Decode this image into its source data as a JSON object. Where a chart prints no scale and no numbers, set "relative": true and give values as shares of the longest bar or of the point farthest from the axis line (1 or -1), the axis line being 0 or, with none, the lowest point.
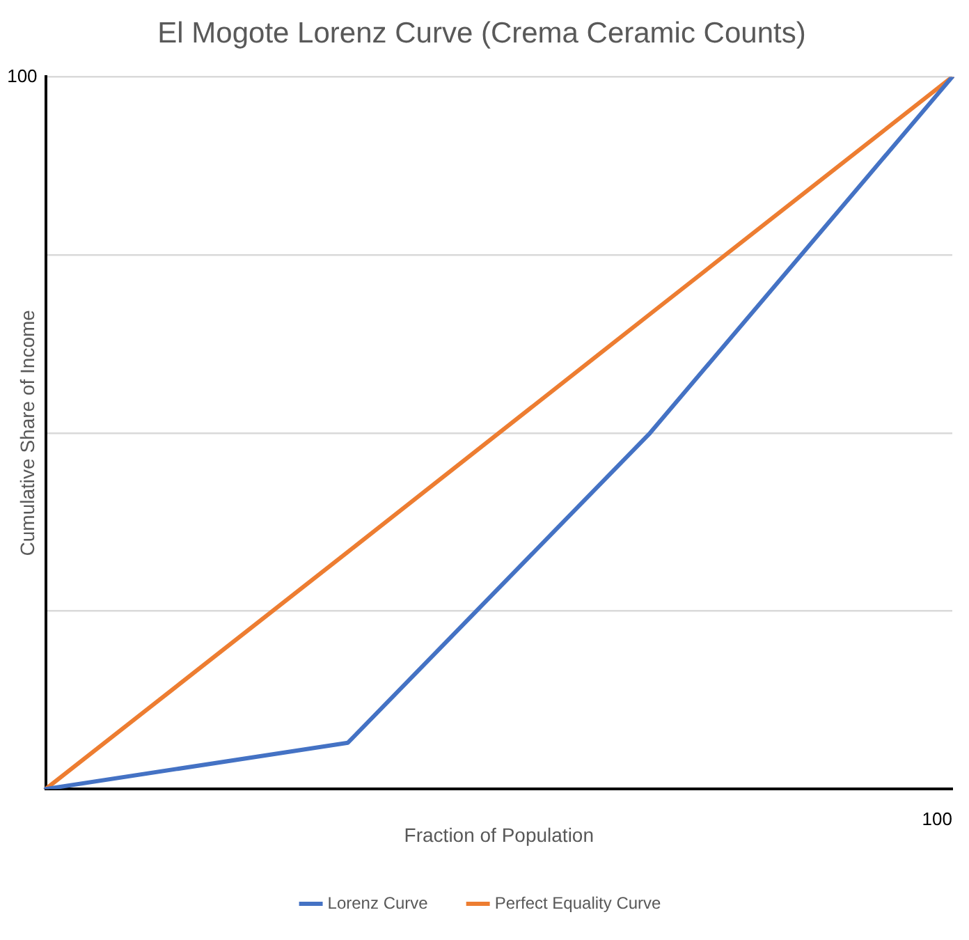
{
  "chart_data": {
    "type": "line",
    "title": "El Mogote Lorenz Curve (Crema Ceramic Counts)",
    "xlabel": "Fraction of Population",
    "ylabel": "Cumulative Share of Income",
    "categories": [
      null,
      null,
      null,
      null
    ],
    "relative": true,
    "series": [
      {
        "name": "Lorenz Curve",
        "color": "#4472c4",
        "values": [
          0,
          0.065,
          0.5,
          1
        ]
      },
      {
        "name": "Perfect Equality Curve",
        "color": "#ed7d31",
        "values": [
          0,
          0.333,
          0.667,
          1
        ]
      }
    ],
    "annotations": [
      "100",
      "100"
    ],
    "grid": "y",
    "legend": "bottom",
    "marker": "none",
    "line_style": "solid"
  }
}
